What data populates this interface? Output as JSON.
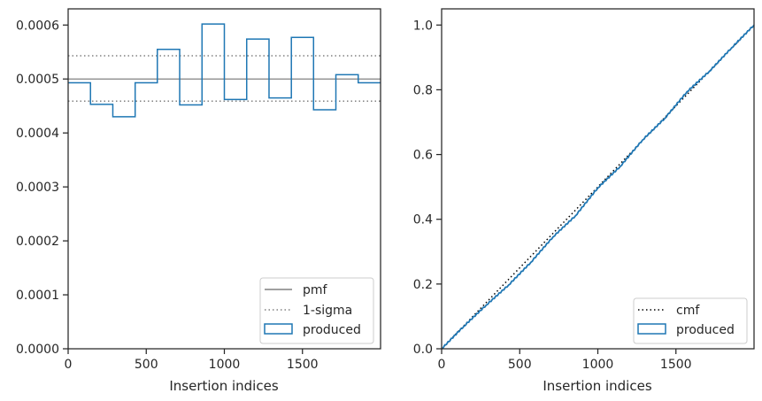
{
  "colors": {
    "produced": "#1f77b4",
    "reference": "#808080",
    "cmf": "#000000",
    "spine": "#262626"
  },
  "chart_data": [
    {
      "type": "histogram",
      "xlabel": "Insertion indices",
      "ylabel": "",
      "xlim": [
        0,
        2000
      ],
      "ylim": [
        0,
        0.00063
      ],
      "xticks": [
        0,
        500,
        1000,
        1500
      ],
      "xtick_labels": [
        "0",
        "500",
        "1000",
        "1500"
      ],
      "yticks": [
        0,
        0.0001,
        0.0002,
        0.0003,
        0.0004,
        0.0005,
        0.0006
      ],
      "ytick_labels": [
        "0.0000",
        "0.0001",
        "0.0002",
        "0.0003",
        "0.0004",
        "0.0005",
        "0.0006"
      ],
      "pmf": 0.0005,
      "sigma_band": [
        0.000459,
        0.000543
      ],
      "bin_edges": [
        0,
        143,
        286,
        429,
        571,
        714,
        857,
        1000,
        1143,
        1286,
        1429,
        1571,
        1714,
        1857,
        2000
      ],
      "values": [
        0.000493,
        0.000453,
        0.00043,
        0.000493,
        0.000555,
        0.000452,
        0.000602,
        0.000462,
        0.000574,
        0.000465,
        0.000577,
        0.000443,
        0.000508,
        0.000493
      ],
      "legend": {
        "placement": "lower right",
        "entries": [
          {
            "label": "pmf",
            "style": "solid",
            "color": "#808080"
          },
          {
            "label": "1-sigma",
            "style": "dotted",
            "color": "#808080"
          },
          {
            "label": "produced",
            "style": "patch",
            "color": "#1f77b4"
          }
        ]
      }
    },
    {
      "type": "line",
      "xlabel": "Insertion indices",
      "ylabel": "",
      "xlim": [
        0,
        2000
      ],
      "ylim": [
        0,
        1.05
      ],
      "xticks": [
        0,
        500,
        1000,
        1500
      ],
      "xtick_labels": [
        "0",
        "500",
        "1000",
        "1500"
      ],
      "yticks": [
        0,
        0.2,
        0.4,
        0.6,
        0.8,
        1.0
      ],
      "ytick_labels": [
        "0.0",
        "0.2",
        "0.4",
        "0.6",
        "0.8",
        "1.0"
      ],
      "cmf": {
        "x": [
          0,
          2000
        ],
        "y": [
          0,
          1
        ]
      },
      "produced": {
        "x": [
          0,
          143,
          286,
          429,
          571,
          714,
          857,
          1000,
          1143,
          1286,
          1429,
          1571,
          1714,
          1857,
          2000
        ],
        "y": [
          0,
          0.07,
          0.135,
          0.197,
          0.267,
          0.346,
          0.411,
          0.497,
          0.563,
          0.645,
          0.712,
          0.794,
          0.857,
          0.93,
          1.0
        ]
      },
      "legend": {
        "placement": "lower right",
        "entries": [
          {
            "label": "cmf",
            "style": "dotted",
            "color": "#000000"
          },
          {
            "label": "produced",
            "style": "patch",
            "color": "#1f77b4"
          }
        ]
      }
    }
  ]
}
